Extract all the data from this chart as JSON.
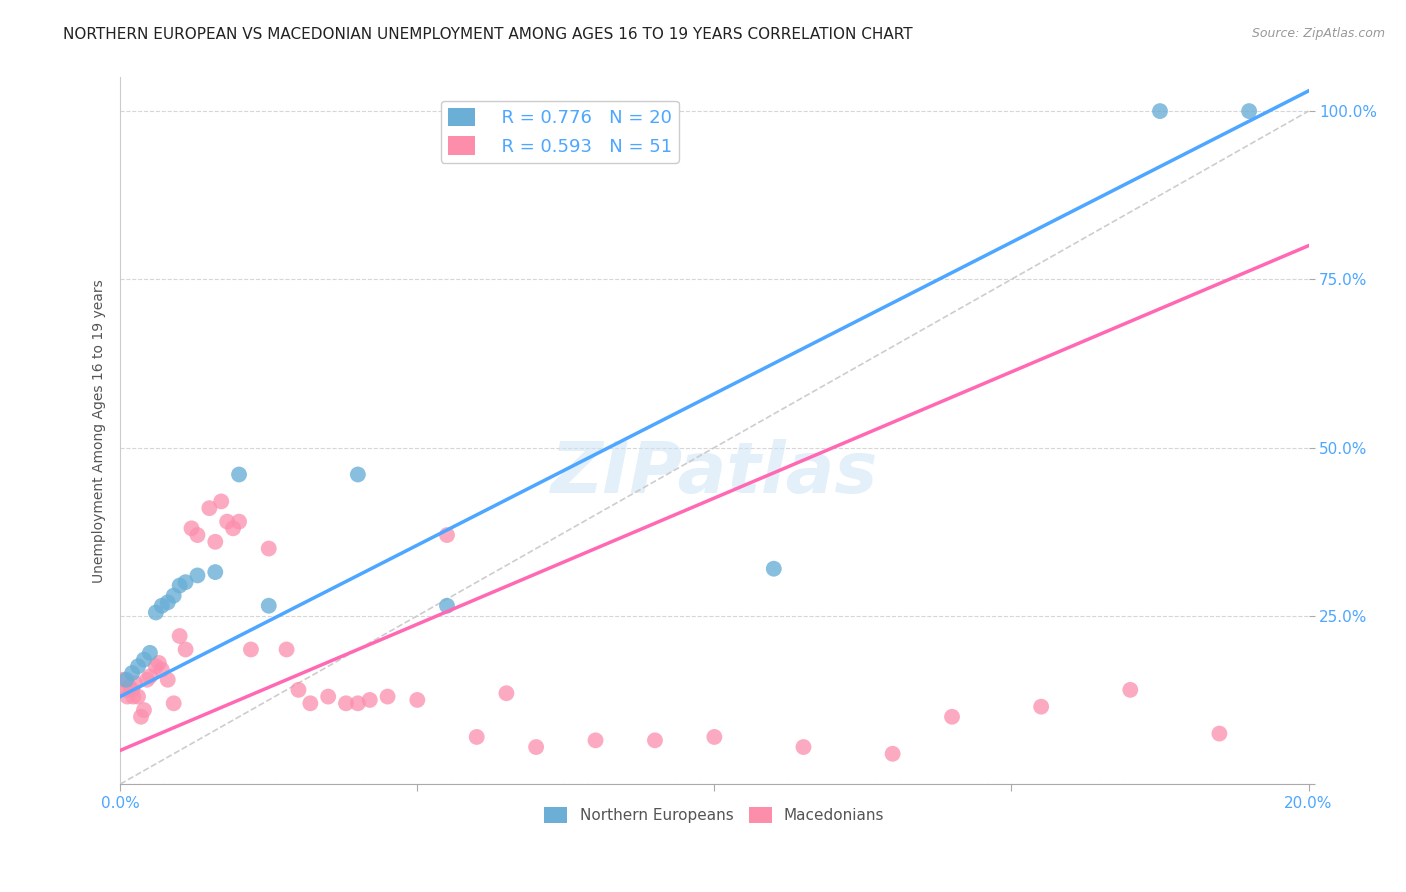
{
  "title": "NORTHERN EUROPEAN VS MACEDONIAN UNEMPLOYMENT AMONG AGES 16 TO 19 YEARS CORRELATION CHART",
  "source": "Source: ZipAtlas.com",
  "ylabel": "Unemployment Among Ages 16 to 19 years",
  "xlim": [
    0.0,
    0.2
  ],
  "ylim": [
    0.0,
    1.05
  ],
  "yticks": [
    0.0,
    0.25,
    0.5,
    0.75,
    1.0
  ],
  "ytick_labels": [
    "",
    "25.0%",
    "50.0%",
    "75.0%",
    "100.0%"
  ],
  "xtick_positions": [
    0.0,
    0.05,
    0.1,
    0.15,
    0.2
  ],
  "xtick_labels": [
    "0.0%",
    "",
    "",
    "",
    "20.0%"
  ],
  "blue_color": "#6baed6",
  "pink_color": "#fc8eac",
  "line_blue": "#4da6ff",
  "line_pink": "#ff69b4",
  "line_gray_color": "#c8c8c8",
  "watermark_text": "ZIPatlas",
  "watermark_zip": "ZIP",
  "watermark_atlas": "atlas",
  "title_fontsize": 11,
  "axis_label_fontsize": 10,
  "tick_fontsize": 11,
  "watermark_fontsize": 52,
  "blue_line_x0": 0.0,
  "blue_line_y0": 0.13,
  "blue_line_x1": 0.2,
  "blue_line_y1": 1.03,
  "pink_line_x0": 0.0,
  "pink_line_y0": 0.05,
  "pink_line_x1": 0.2,
  "pink_line_y1": 0.8,
  "ne_x": [
    0.001,
    0.002,
    0.003,
    0.004,
    0.005,
    0.006,
    0.007,
    0.008,
    0.009,
    0.01,
    0.011,
    0.013,
    0.016,
    0.02,
    0.025,
    0.04,
    0.055,
    0.11,
    0.175,
    0.19
  ],
  "ne_y": [
    0.155,
    0.165,
    0.175,
    0.185,
    0.195,
    0.255,
    0.265,
    0.27,
    0.28,
    0.295,
    0.3,
    0.31,
    0.315,
    0.46,
    0.265,
    0.46,
    0.265,
    0.32,
    1.0,
    1.0
  ],
  "mac_x": [
    0.0005,
    0.001,
    0.0012,
    0.0015,
    0.002,
    0.0022,
    0.0025,
    0.003,
    0.0035,
    0.004,
    0.0045,
    0.005,
    0.006,
    0.0065,
    0.007,
    0.008,
    0.009,
    0.01,
    0.011,
    0.012,
    0.013,
    0.015,
    0.016,
    0.017,
    0.018,
    0.019,
    0.02,
    0.022,
    0.025,
    0.028,
    0.03,
    0.032,
    0.035,
    0.038,
    0.04,
    0.042,
    0.045,
    0.05,
    0.055,
    0.06,
    0.065,
    0.07,
    0.08,
    0.09,
    0.1,
    0.115,
    0.13,
    0.14,
    0.155,
    0.17,
    0.185
  ],
  "mac_y": [
    0.155,
    0.14,
    0.13,
    0.145,
    0.14,
    0.13,
    0.15,
    0.13,
    0.1,
    0.11,
    0.155,
    0.16,
    0.175,
    0.18,
    0.17,
    0.155,
    0.12,
    0.22,
    0.2,
    0.38,
    0.37,
    0.41,
    0.36,
    0.42,
    0.39,
    0.38,
    0.39,
    0.2,
    0.35,
    0.2,
    0.14,
    0.12,
    0.13,
    0.12,
    0.12,
    0.125,
    0.13,
    0.125,
    0.37,
    0.07,
    0.135,
    0.055,
    0.065,
    0.065,
    0.07,
    0.055,
    0.045,
    0.1,
    0.115,
    0.14,
    0.075
  ]
}
